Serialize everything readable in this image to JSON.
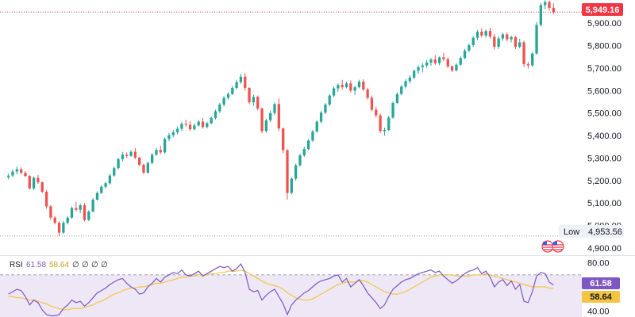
{
  "colors": {
    "up": "#26a69a",
    "down": "#ef5350",
    "rsi_line": "#7e57c2",
    "rsi_ma": "#f5c542",
    "rsi_band": "#ede7f6",
    "last_price_bg": "#f23645",
    "rsi_badge_bg": "#7e57c2",
    "ma_badge_bg": "#f5c542",
    "low_badge_bg": "#eef2f7",
    "grid": "#e0e3eb",
    "dotted_red": "#f23645",
    "dotted_gray": "#9598a1"
  },
  "price_axis": {
    "ticks": [
      "5,900.00",
      "5,800.00",
      "5,700.00",
      "5,600.00",
      "5,500.00",
      "5,400.00",
      "5,300.00",
      "5,200.00",
      "5,100.00",
      "5,000.00",
      "4,900.00"
    ],
    "tick_values": [
      5900,
      5800,
      5700,
      5600,
      5500,
      5400,
      5300,
      5200,
      5100,
      5000,
      4900
    ],
    "range": [
      4868,
      6003
    ]
  },
  "last_price": {
    "value": 5949.16,
    "label": "5,949.16"
  },
  "low_marker": {
    "label": "Low",
    "value": 4953.56,
    "value_label": "4,953.56"
  },
  "rsi_panel": {
    "legend_title": "RSI",
    "legend_rsi": "61.58",
    "legend_ma": "58.64",
    "legend_extra": [
      "∅",
      "∅",
      "∅",
      "∅"
    ],
    "axis_ticks": [
      "80.00",
      "40.00"
    ],
    "axis_tick_values": [
      80,
      40
    ],
    "band": [
      70,
      30
    ],
    "range": [
      35,
      85
    ],
    "rsi_badge": "61.58",
    "ma_badge": "58.64"
  },
  "chart_data": {
    "type": "candlestick",
    "ylim": [
      4868,
      6003
    ],
    "ohlc": [
      [
        5215,
        5230,
        5205,
        5222
      ],
      [
        5222,
        5250,
        5215,
        5240
      ],
      [
        5240,
        5262,
        5228,
        5250
      ],
      [
        5250,
        5258,
        5228,
        5235
      ],
      [
        5235,
        5242,
        5215,
        5220
      ],
      [
        5220,
        5225,
        5160,
        5165
      ],
      [
        5165,
        5218,
        5158,
        5212
      ],
      [
        5212,
        5225,
        5185,
        5192
      ],
      [
        5192,
        5196,
        5145,
        5150
      ],
      [
        5150,
        5158,
        5075,
        5085
      ],
      [
        5085,
        5092,
        5025,
        5035
      ],
      [
        5035,
        5042,
        5005,
        5012
      ],
      [
        5012,
        5018,
        4953,
        4968
      ],
      [
        4968,
        5020,
        4962,
        5012
      ],
      [
        5012,
        5042,
        5005,
        5035
      ],
      [
        5035,
        5085,
        5030,
        5078
      ],
      [
        5078,
        5105,
        5062,
        5070
      ],
      [
        5070,
        5098,
        5055,
        5090
      ],
      [
        5090,
        5100,
        5018,
        5025
      ],
      [
        5025,
        5068,
        5020,
        5062
      ],
      [
        5062,
        5122,
        5058,
        5115
      ],
      [
        5115,
        5152,
        5110,
        5145
      ],
      [
        5145,
        5180,
        5140,
        5172
      ],
      [
        5172,
        5195,
        5165,
        5188
      ],
      [
        5188,
        5230,
        5182,
        5222
      ],
      [
        5222,
        5262,
        5218,
        5255
      ],
      [
        5255,
        5302,
        5250,
        5295
      ],
      [
        5295,
        5328,
        5285,
        5315
      ],
      [
        5315,
        5325,
        5300,
        5310
      ],
      [
        5310,
        5335,
        5305,
        5328
      ],
      [
        5328,
        5345,
        5295,
        5302
      ],
      [
        5302,
        5305,
        5265,
        5270
      ],
      [
        5270,
        5275,
        5228,
        5235
      ],
      [
        5235,
        5285,
        5230,
        5278
      ],
      [
        5278,
        5322,
        5272,
        5315
      ],
      [
        5315,
        5345,
        5310,
        5336
      ],
      [
        5336,
        5355,
        5318,
        5325
      ],
      [
        5325,
        5392,
        5320,
        5385
      ],
      [
        5385,
        5412,
        5375,
        5402
      ],
      [
        5402,
        5425,
        5392,
        5415
      ],
      [
        5415,
        5440,
        5405,
        5430
      ],
      [
        5430,
        5460,
        5420,
        5452
      ],
      [
        5452,
        5470,
        5440,
        5448
      ],
      [
        5448,
        5465,
        5420,
        5428
      ],
      [
        5428,
        5455,
        5422,
        5445
      ],
      [
        5445,
        5470,
        5440,
        5462
      ],
      [
        5462,
        5478,
        5430,
        5438
      ],
      [
        5438,
        5462,
        5432,
        5455
      ],
      [
        5455,
        5485,
        5450,
        5478
      ],
      [
        5478,
        5515,
        5472,
        5508
      ],
      [
        5508,
        5545,
        5500,
        5538
      ],
      [
        5538,
        5575,
        5530,
        5568
      ],
      [
        5568,
        5592,
        5560,
        5585
      ],
      [
        5585,
        5620,
        5580,
        5612
      ],
      [
        5612,
        5648,
        5605,
        5638
      ],
      [
        5638,
        5675,
        5630,
        5662
      ],
      [
        5662,
        5678,
        5600,
        5612
      ],
      [
        5612,
        5615,
        5540,
        5548
      ],
      [
        5548,
        5582,
        5532,
        5572
      ],
      [
        5572,
        5578,
        5512,
        5520
      ],
      [
        5520,
        5525,
        5410,
        5420
      ],
      [
        5420,
        5475,
        5412,
        5468
      ],
      [
        5468,
        5510,
        5460,
        5500
      ],
      [
        5500,
        5548,
        5490,
        5540
      ],
      [
        5540,
        5565,
        5420,
        5432
      ],
      [
        5432,
        5435,
        5322,
        5335
      ],
      [
        5335,
        5340,
        5115,
        5145
      ],
      [
        5145,
        5215,
        5138,
        5208
      ],
      [
        5208,
        5275,
        5200,
        5268
      ],
      [
        5268,
        5320,
        5262,
        5312
      ],
      [
        5312,
        5350,
        5305,
        5340
      ],
      [
        5340,
        5385,
        5335,
        5378
      ],
      [
        5378,
        5425,
        5372,
        5418
      ],
      [
        5418,
        5468,
        5412,
        5462
      ],
      [
        5462,
        5510,
        5455,
        5502
      ],
      [
        5502,
        5545,
        5495,
        5538
      ],
      [
        5538,
        5585,
        5530,
        5578
      ],
      [
        5578,
        5618,
        5570,
        5610
      ],
      [
        5610,
        5632,
        5595,
        5625
      ],
      [
        5625,
        5648,
        5605,
        5615
      ],
      [
        5615,
        5640,
        5610,
        5632
      ],
      [
        5632,
        5645,
        5592,
        5600
      ],
      [
        5600,
        5622,
        5580,
        5615
      ],
      [
        5615,
        5648,
        5610,
        5640
      ],
      [
        5640,
        5650,
        5598,
        5605
      ],
      [
        5605,
        5612,
        5560,
        5568
      ],
      [
        5568,
        5578,
        5508,
        5515
      ],
      [
        5515,
        5528,
        5480,
        5490
      ],
      [
        5490,
        5498,
        5412,
        5420
      ],
      [
        5420,
        5435,
        5400,
        5425
      ],
      [
        5425,
        5488,
        5420,
        5480
      ],
      [
        5480,
        5552,
        5475,
        5545
      ],
      [
        5545,
        5592,
        5540,
        5585
      ],
      [
        5585,
        5625,
        5580,
        5618
      ],
      [
        5618,
        5650,
        5610,
        5642
      ],
      [
        5642,
        5668,
        5632,
        5658
      ],
      [
        5658,
        5695,
        5650,
        5688
      ],
      [
        5688,
        5712,
        5675,
        5705
      ],
      [
        5705,
        5722,
        5680,
        5712
      ],
      [
        5712,
        5735,
        5702,
        5725
      ],
      [
        5725,
        5745,
        5710,
        5738
      ],
      [
        5738,
        5758,
        5715,
        5722
      ],
      [
        5722,
        5752,
        5712,
        5748
      ],
      [
        5748,
        5768,
        5730,
        5740
      ],
      [
        5740,
        5748,
        5700,
        5708
      ],
      [
        5708,
        5712,
        5682,
        5690
      ],
      [
        5690,
        5722,
        5684,
        5715
      ],
      [
        5715,
        5752,
        5710,
        5745
      ],
      [
        5745,
        5785,
        5740,
        5778
      ],
      [
        5778,
        5810,
        5770,
        5802
      ],
      [
        5802,
        5842,
        5795,
        5835
      ],
      [
        5835,
        5870,
        5825,
        5862
      ],
      [
        5862,
        5878,
        5838,
        5845
      ],
      [
        5845,
        5872,
        5835,
        5865
      ],
      [
        5865,
        5880,
        5832,
        5840
      ],
      [
        5840,
        5852,
        5782,
        5795
      ],
      [
        5795,
        5842,
        5785,
        5832
      ],
      [
        5832,
        5858,
        5822,
        5850
      ],
      [
        5850,
        5858,
        5818,
        5828
      ],
      [
        5828,
        5845,
        5815,
        5838
      ],
      [
        5838,
        5842,
        5785,
        5795
      ],
      [
        5795,
        5830,
        5788,
        5815
      ],
      [
        5815,
        5822,
        5705,
        5718
      ],
      [
        5718,
        5728,
        5698,
        5712
      ],
      [
        5712,
        5772,
        5705,
        5765
      ],
      [
        5765,
        5905,
        5760,
        5892
      ],
      [
        5892,
        5990,
        5885,
        5980
      ],
      [
        5980,
        6002,
        5962,
        5994
      ],
      [
        5994,
        6000,
        5955,
        5968
      ],
      [
        5968,
        5988,
        5940,
        5949.16
      ]
    ],
    "rsi": [
      54,
      56,
      58,
      57,
      52,
      45,
      49,
      47,
      41,
      37,
      36,
      36,
      37,
      42,
      45,
      49,
      47,
      48,
      44,
      47,
      51,
      55,
      57,
      59,
      62,
      64,
      66,
      67,
      63,
      60,
      58,
      54,
      55,
      60,
      63,
      67,
      64,
      68,
      70,
      72,
      71,
      74,
      70,
      69,
      71,
      73,
      69,
      71,
      73,
      75,
      77,
      76,
      77,
      73,
      75,
      79,
      72,
      58,
      56,
      57,
      49,
      53,
      56,
      58,
      52,
      46,
      37,
      45,
      49,
      52,
      55,
      57,
      60,
      63,
      65,
      66,
      67,
      69,
      70,
      64,
      67,
      60,
      63,
      66,
      61,
      55,
      51,
      47,
      42,
      45,
      52,
      58,
      61,
      64,
      66,
      67,
      69,
      71,
      72,
      73,
      74,
      72,
      73,
      69,
      66,
      63,
      65,
      68,
      71,
      73,
      74,
      76,
      71,
      73,
      68,
      60,
      64,
      66,
      61,
      65,
      58,
      62,
      48,
      47,
      56,
      69,
      72,
      71,
      64,
      61.58
    ],
    "rsi_ma": [
      52,
      52,
      51,
      51,
      50,
      49,
      49,
      48,
      47,
      46,
      44,
      43,
      42,
      41,
      41,
      42,
      42,
      42,
      43,
      44,
      45,
      47,
      48,
      50,
      52,
      54,
      55,
      57,
      58,
      59,
      59,
      60,
      60,
      61,
      62,
      63,
      63,
      64,
      65,
      66,
      67,
      68,
      68,
      69,
      69,
      70,
      70,
      70,
      71,
      71,
      72,
      72,
      73,
      73,
      73,
      74,
      73,
      71,
      69,
      67,
      65,
      63,
      62,
      61,
      60,
      58,
      55,
      53,
      51,
      50,
      49,
      49,
      50,
      52,
      54,
      56,
      58,
      60,
      62,
      63,
      64,
      64,
      64,
      65,
      65,
      64,
      62,
      60,
      58,
      56,
      55,
      54,
      54,
      55,
      56,
      58,
      60,
      62,
      64,
      66,
      68,
      69,
      70,
      70,
      70,
      70,
      69,
      69,
      69,
      69,
      70,
      70,
      70,
      71,
      70,
      69,
      68,
      67,
      66,
      65,
      64,
      63,
      62,
      61,
      60,
      60,
      60,
      60,
      59,
      58.64
    ]
  }
}
